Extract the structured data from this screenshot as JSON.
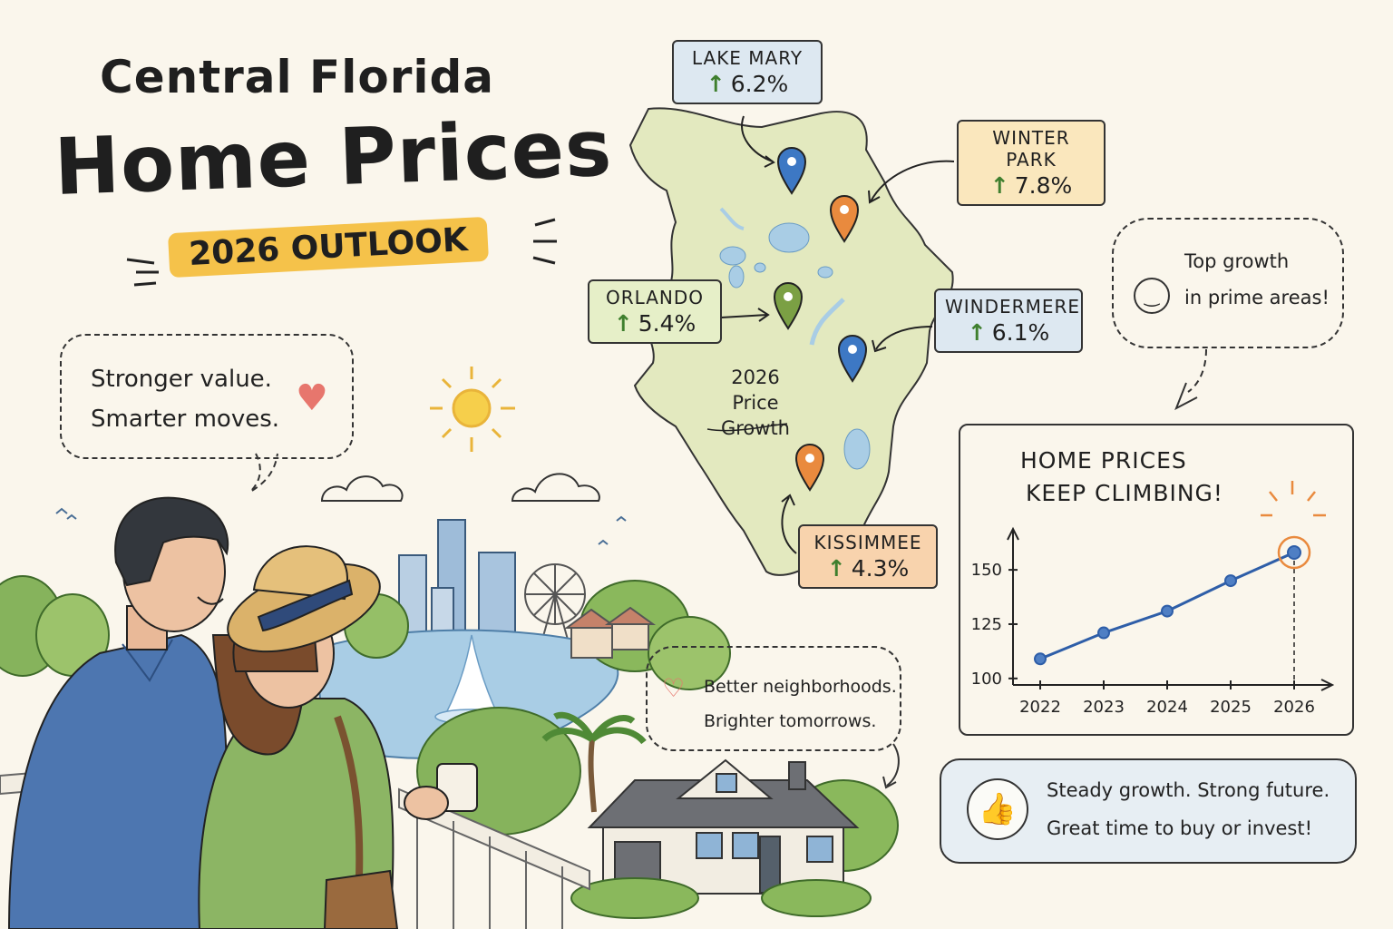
{
  "title": {
    "line1": "Central Florida",
    "line2": "Home Prices",
    "badge": "2026 OUTLOOK"
  },
  "bubble_left": {
    "line1": "Stronger value.",
    "line2": "Smarter moves."
  },
  "map": {
    "center_label_line1": "2026",
    "center_label_line2": "Price Growth",
    "callouts": [
      {
        "name": "LAKE MARY",
        "change": "6.2%",
        "box_color": "#dde8f1",
        "pin_color": "#3d78c4"
      },
      {
        "name": "WINTER PARK",
        "change": "7.8%",
        "box_color": "#fae7bd",
        "pin_color": "#e98a3e"
      },
      {
        "name": "ORLANDO",
        "change": "5.4%",
        "box_color": "#e6efc8",
        "pin_color": "#7ba044"
      },
      {
        "name": "WINDERMERE",
        "change": "6.1%",
        "box_color": "#dde8f1",
        "pin_color": "#3d78c4"
      },
      {
        "name": "KISSIMMEE",
        "change": "4.3%",
        "box_color": "#f8d3ad",
        "pin_color": "#e98a3e"
      }
    ]
  },
  "bubble_right": {
    "line1": "Top growth",
    "line2": "in prime areas!"
  },
  "bubble_house": {
    "line1": "Better neighborhoods.",
    "line2": "Brighter tomorrows."
  },
  "chart_data": {
    "type": "line",
    "title": "HOME PRICES KEEP CLIMBING!",
    "title_line1": "HOME PRICES",
    "title_line2": "KEEP CLIMBING!",
    "x": [
      "2022",
      "2023",
      "2024",
      "2025",
      "2026"
    ],
    "values": [
      109,
      121,
      131,
      145,
      158
    ],
    "y_ticks": [
      100,
      125,
      150
    ],
    "ylim": [
      97,
      163
    ],
    "highlight": "2026",
    "line_color": "#2e5ea8",
    "highlight_color": "#e98a3e",
    "grid": false
  },
  "footer": {
    "line1": "Steady growth. Strong future.",
    "line2": "Great time to buy or invest!"
  },
  "colors": {
    "background": "#faf6ec",
    "badge": "#f5c24a",
    "map_land": "#e3e9bf",
    "water": "#a9cde5",
    "accent_blue": "#3d78c4",
    "accent_orange": "#e98a3e",
    "accent_green": "#7ba044"
  }
}
